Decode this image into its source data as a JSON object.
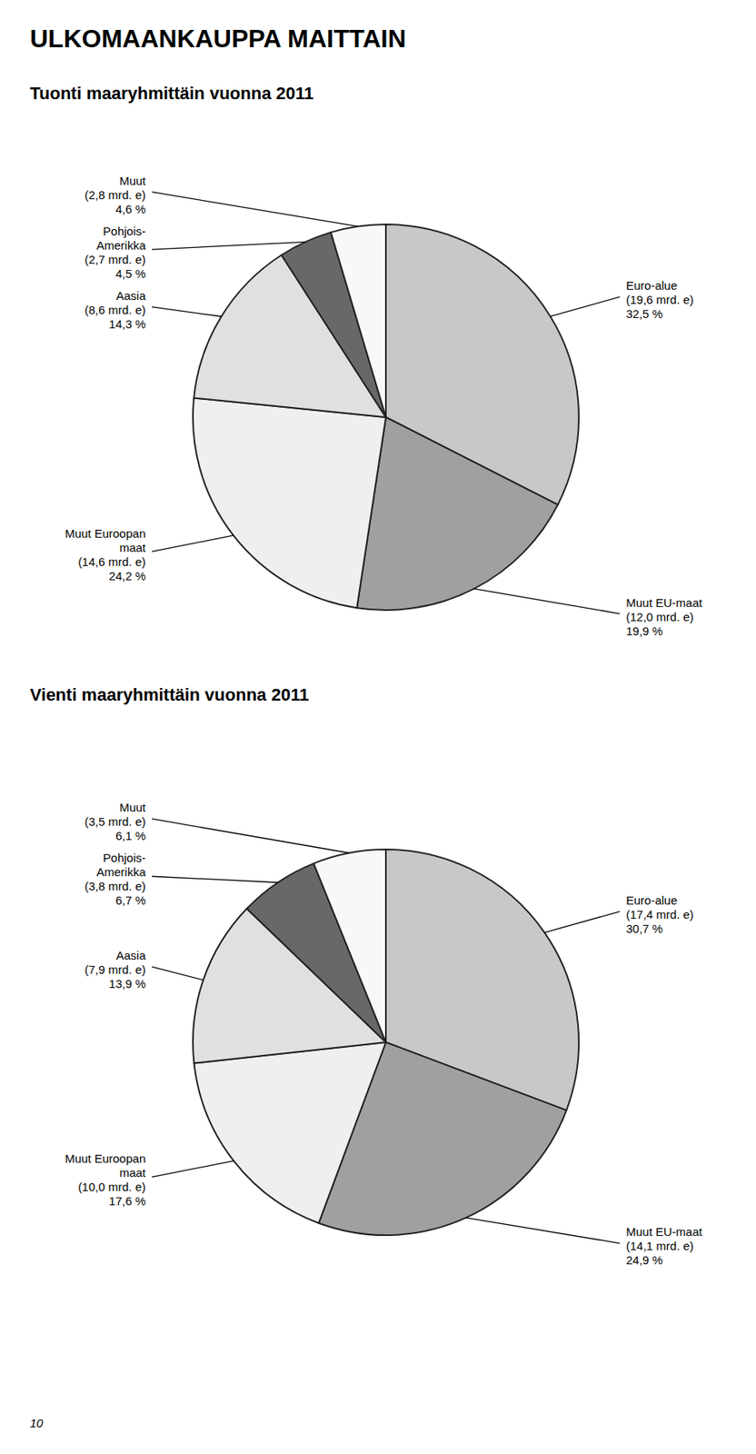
{
  "title": "ULKOMAANKAUPPA MAITTAIN",
  "annotations": [
    "10"
  ],
  "chart_data": [
    {
      "type": "pie",
      "title": "Tuonti maaryhmittäin vuonna 2011",
      "categories": [
        "Euro-alue",
        "Muut EU-maat",
        "Muut Euroopan maat",
        "Aasia",
        "Pohjois-Amerikka",
        "Muut"
      ],
      "values": [
        32.5,
        19.9,
        24.2,
        14.3,
        4.5,
        4.6
      ],
      "value_labels": [
        "32,5 %",
        "19,9 %",
        "24,2 %",
        "14,3 %",
        "4,5 %",
        "4,6 %"
      ],
      "amount_labels": [
        "(19,6 mrd. e)",
        "(12,0 mrd. e)",
        "(14,6 mrd. e)",
        "(8,6 mrd. e)",
        "(2,7 mrd. e)",
        "(2,8 mrd. e)"
      ],
      "colors": [
        "#c8c8c8",
        "#a0a0a0",
        "#efefef",
        "#e0e0e0",
        "#686868",
        "#f8f8f8"
      ],
      "data_labels": true
    },
    {
      "type": "pie",
      "title": "Vienti maaryhmittäin vuonna 2011",
      "categories": [
        "Euro-alue",
        "Muut EU-maat",
        "Muut Euroopan maat",
        "Aasia",
        "Pohjois-Amerikka",
        "Muut"
      ],
      "values": [
        30.7,
        24.9,
        17.6,
        13.9,
        6.7,
        6.1
      ],
      "value_labels": [
        "30,7 %",
        "24,9 %",
        "17,6 %",
        "13,9 %",
        "6,7 %",
        "6,1 %"
      ],
      "amount_labels": [
        "(17,4 mrd. e)",
        "(14,1 mrd. e)",
        "(10,0 mrd. e)",
        "(7,9 mrd. e)",
        "(3,8 mrd. e)",
        "(3,5 mrd. e)"
      ],
      "colors": [
        "#c8c8c8",
        "#a0a0a0",
        "#efefef",
        "#e0e0e0",
        "#686868",
        "#f8f8f8"
      ],
      "data_labels": true
    }
  ]
}
